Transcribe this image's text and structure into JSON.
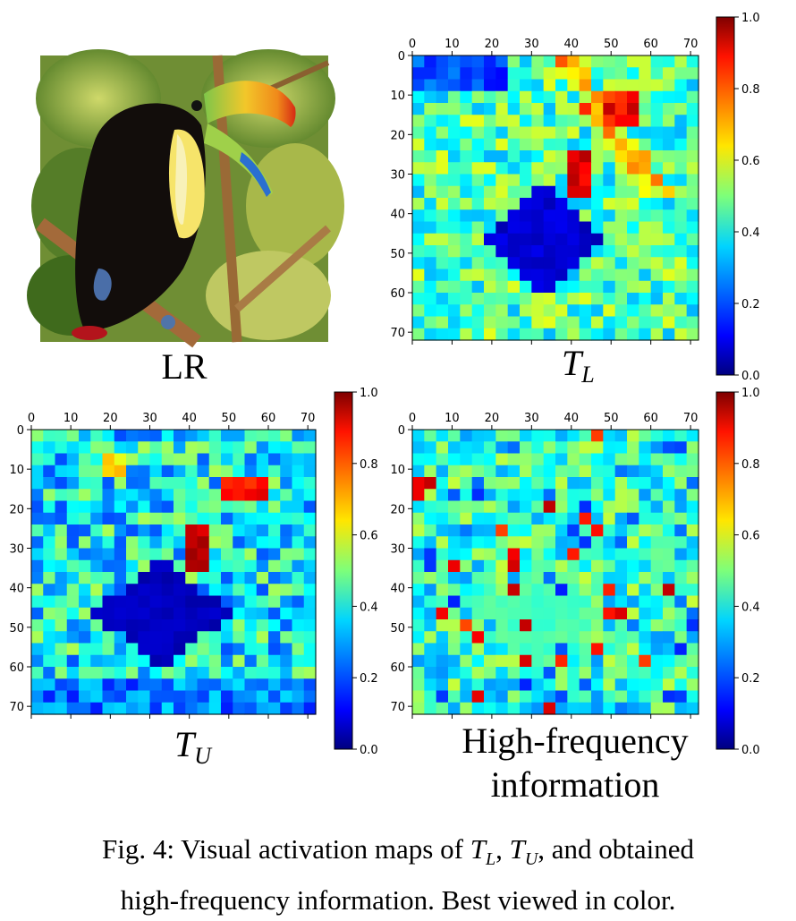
{
  "panels": [
    {
      "id": "lr",
      "kind": "photo",
      "label": "LR"
    },
    {
      "id": "tl",
      "kind": "heatmap",
      "label_main": "T",
      "label_sub": "L",
      "pattern": "tl"
    },
    {
      "id": "tu",
      "kind": "heatmap",
      "label_main": "T",
      "label_sub": "U",
      "pattern": "tu"
    },
    {
      "id": "hf",
      "kind": "heatmap",
      "label_line1": "High-frequency",
      "label_line2": "information",
      "pattern": "hf"
    }
  ],
  "axis_ticks": [
    "0",
    "10",
    "20",
    "30",
    "40",
    "50",
    "60",
    "70"
  ],
  "colorbar_ticks": [
    "0.0",
    "0.2",
    "0.4",
    "0.6",
    "0.8",
    "1.0"
  ],
  "colorbar_top_hf": "1.0",
  "colormap": "jet",
  "caption": {
    "prefix": "Fig. 4: Visual activation maps of ",
    "t": "T",
    "sub_l": "L",
    "sep": ", ",
    "sub_u": "U",
    "rest_line1": ", and obtained",
    "line2": "high-frequency information. Best viewed in color."
  }
}
